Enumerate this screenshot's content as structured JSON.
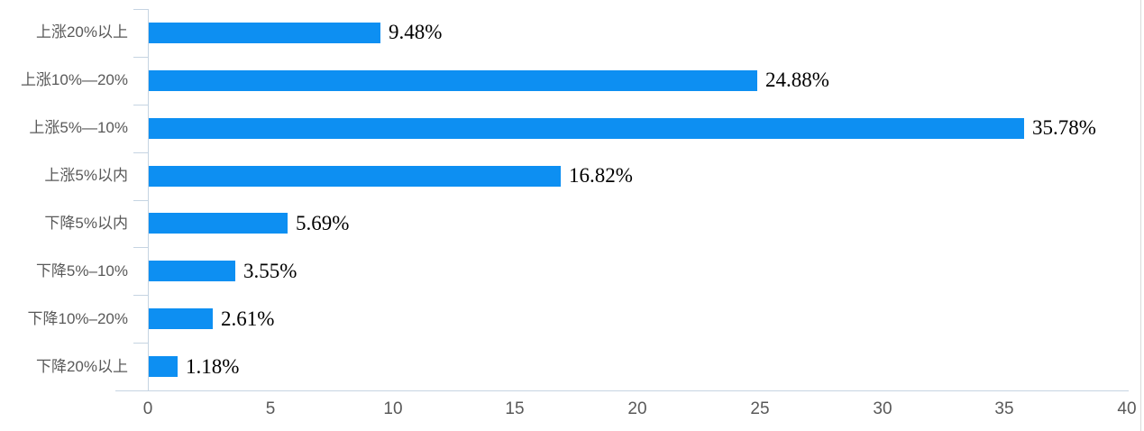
{
  "chart_data": {
    "type": "bar",
    "orientation": "horizontal",
    "title": "",
    "xlabel": "",
    "ylabel": "",
    "categories": [
      "上涨20%以上",
      "上涨10%—20%",
      "上涨5%—10%",
      "上涨5%以内",
      "下降5%以内",
      "下降5%–10%",
      "下降10%–20%",
      "下降20%以上"
    ],
    "values": [
      9.48,
      24.88,
      35.78,
      16.82,
      5.69,
      3.55,
      2.61,
      1.18
    ],
    "value_labels": [
      "9.48%",
      "24.88%",
      "35.78%",
      "16.82%",
      "5.69%",
      "3.55%",
      "2.61%",
      "1.18%"
    ],
    "xlim": [
      0,
      40
    ],
    "x_ticks": [
      "0",
      "5",
      "10",
      "15",
      "20",
      "25",
      "30",
      "35",
      "40"
    ],
    "grid": false,
    "legend": false,
    "colors": {
      "bar": "#0d8ff2",
      "axis_line": "#c6d4e2",
      "category_label": "#595959",
      "tick_label": "#595959",
      "value_label": "#000000",
      "right_border": "#d9d9d9"
    }
  }
}
